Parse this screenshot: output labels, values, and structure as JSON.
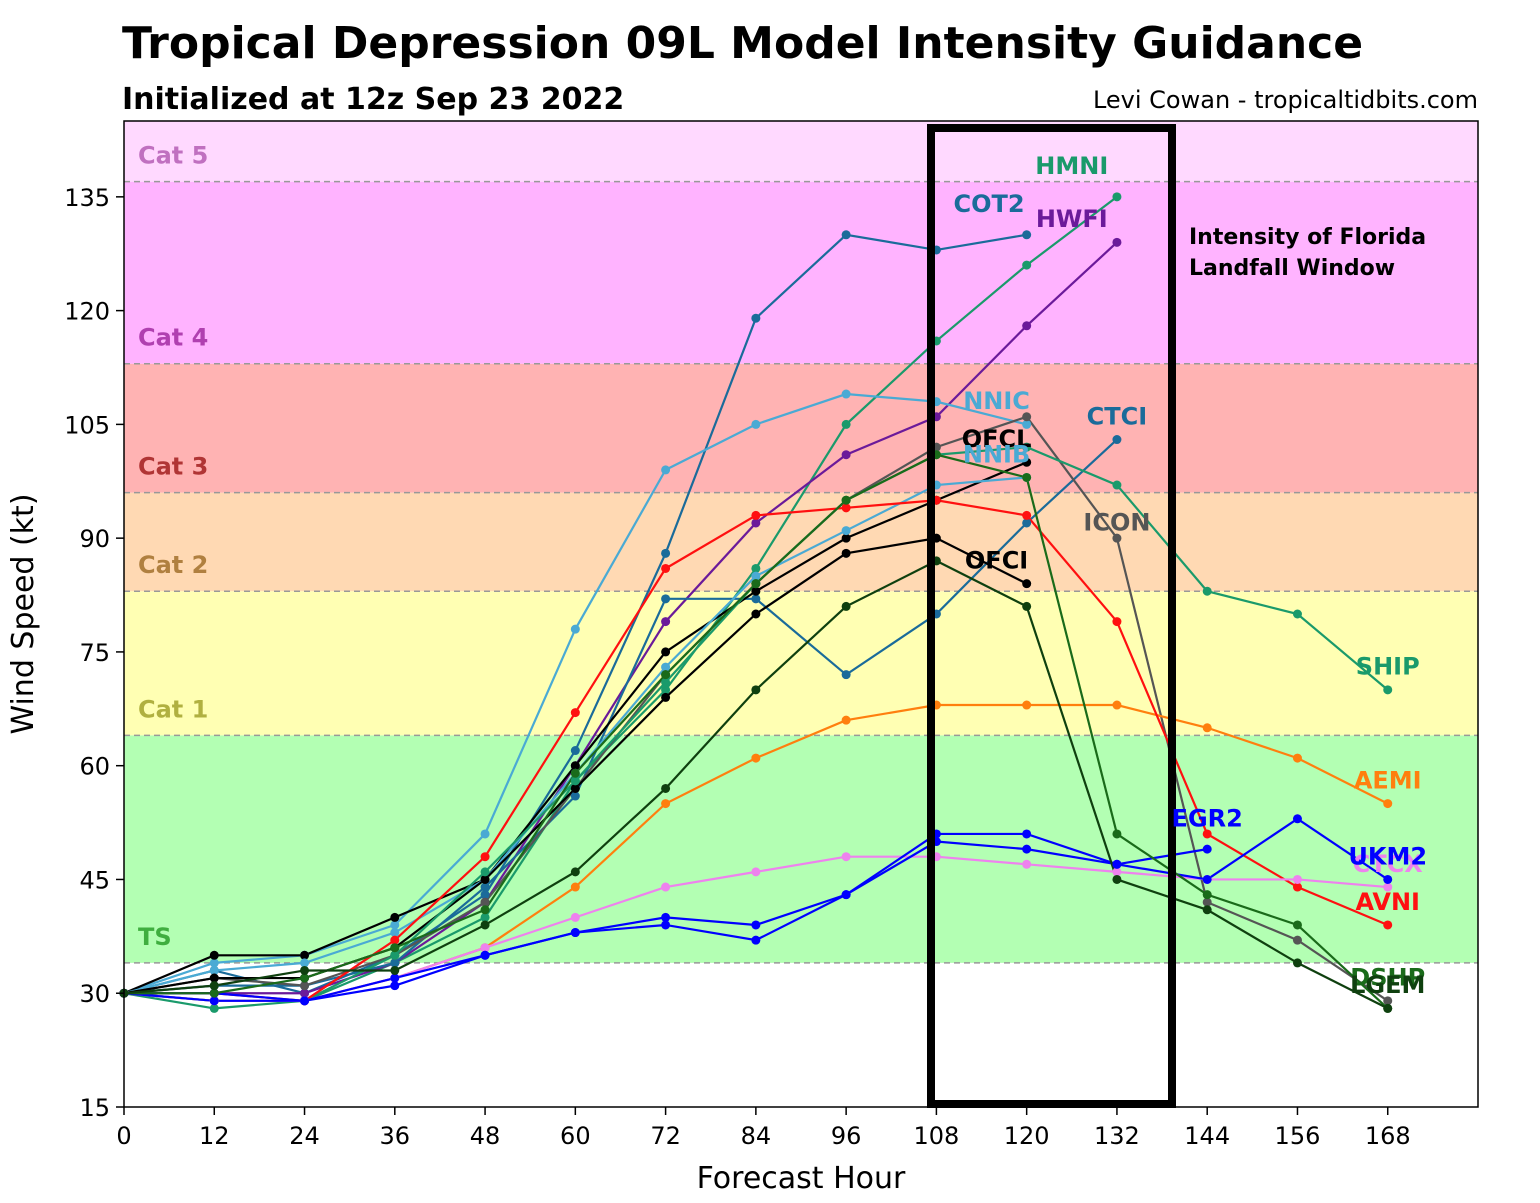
{
  "header": {
    "title": "Tropical Depression 09L Model Intensity Guidance",
    "subtitle": "Initialized at 12z Sep 23 2022",
    "credit": "Levi Cowan - tropicaltidbits.com"
  },
  "chart_data": {
    "type": "line",
    "xlabel": "Forecast Hour",
    "ylabel": "Wind Speed (kt)",
    "xlim": [
      0,
      180
    ],
    "ylim": [
      15,
      145
    ],
    "xticks": [
      0,
      12,
      24,
      36,
      48,
      60,
      72,
      84,
      96,
      108,
      120,
      132,
      144,
      156,
      168
    ],
    "yticks": [
      15,
      30,
      45,
      60,
      75,
      90,
      105,
      120,
      135
    ],
    "categories": [
      {
        "label": "TS",
        "min": 34,
        "max": 64,
        "fill": "#b3ffb3",
        "text_color": "#3fae3f"
      },
      {
        "label": "Cat 1",
        "min": 64,
        "max": 83,
        "fill": "#ffffb3",
        "text_color": "#b0b040"
      },
      {
        "label": "Cat 2",
        "min": 83,
        "max": 96,
        "fill": "#ffd9b3",
        "text_color": "#b08040"
      },
      {
        "label": "Cat 3",
        "min": 96,
        "max": 113,
        "fill": "#ffb3b3",
        "text_color": "#b03535"
      },
      {
        "label": "Cat 4",
        "min": 113,
        "max": 137,
        "fill": "#ffb3ff",
        "text_color": "#b040b0"
      },
      {
        "label": "Cat 5",
        "min": 137,
        "max": 145,
        "fill": "#ffd9ff",
        "text_color": "#c070c0"
      }
    ],
    "annotation": {
      "lines": [
        "Intensity of Florida",
        "Landfall Window"
      ],
      "x_range": [
        108,
        140
      ]
    },
    "series": [
      {
        "name": "COT2",
        "color": "#1a6b9a",
        "x": [
          0,
          12,
          24,
          36,
          48,
          60,
          72,
          84,
          96,
          108,
          120
        ],
        "values": [
          30,
          33,
          30,
          35,
          43,
          62,
          88,
          119,
          130,
          128,
          130
        ],
        "label_at": [
          115,
          133
        ]
      },
      {
        "name": "HMNI",
        "color": "#1a9a6b",
        "x": [
          0,
          12,
          24,
          36,
          48,
          60,
          72,
          84,
          96,
          108,
          120,
          132
        ],
        "values": [
          30,
          28,
          29,
          34,
          40,
          58,
          70,
          86,
          105,
          116,
          126,
          135
        ],
        "label_at": [
          126,
          138
        ]
      },
      {
        "name": "HWFI",
        "color": "#6b1a9a",
        "x": [
          0,
          12,
          24,
          36,
          48,
          60,
          72,
          84,
          96,
          108,
          120,
          132
        ],
        "values": [
          30,
          30,
          30,
          34,
          42,
          60,
          79,
          92,
          101,
          106,
          118,
          129
        ],
        "label_at": [
          126,
          131
        ]
      },
      {
        "name": "NNIC",
        "color": "#4aaad4",
        "x": [
          0,
          12,
          24,
          36,
          48,
          60,
          72,
          84,
          96,
          108,
          120
        ],
        "values": [
          30,
          34,
          35,
          39,
          51,
          78,
          99,
          105,
          109,
          108,
          105
        ],
        "label_at": [
          116,
          107
        ]
      },
      {
        "name": "CTCI",
        "color": "#1a6b9a",
        "x": [
          0,
          12,
          24,
          36,
          48,
          60,
          72,
          84,
          96,
          108,
          120,
          132
        ],
        "values": [
          30,
          31,
          31,
          34,
          44,
          56,
          82,
          82,
          72,
          80,
          92,
          103
        ],
        "label_at": [
          132,
          105
        ]
      },
      {
        "name": "OFCL",
        "color": "#000000",
        "x": [
          0,
          12,
          24,
          36,
          48,
          60,
          72,
          84,
          96,
          108,
          120
        ],
        "values": [
          30,
          35,
          35,
          40,
          45,
          60,
          75,
          83,
          90,
          95,
          100
        ],
        "label_at": [
          116,
          102
        ]
      },
      {
        "name": "NNIB",
        "color": "#4aaad4",
        "x": [
          0,
          12,
          24,
          36,
          48,
          60,
          72,
          84,
          96,
          108,
          120
        ],
        "values": [
          30,
          33,
          34,
          38,
          45,
          59,
          73,
          85,
          91,
          97,
          98
        ],
        "label_at": [
          116,
          100
        ]
      },
      {
        "name": "ICON",
        "color": "#555555",
        "x": [
          0,
          12,
          24,
          36,
          48,
          60,
          72,
          84,
          96,
          108,
          120,
          132,
          144,
          156,
          168
        ],
        "values": [
          30,
          32,
          31,
          35,
          42,
          57,
          72,
          84,
          95,
          102,
          106,
          90,
          42,
          37,
          29
        ],
        "label_at": [
          132,
          91
        ]
      },
      {
        "name": "OFCI",
        "color": "#000000",
        "x": [
          0,
          12,
          24,
          36,
          48,
          60,
          72,
          84,
          96,
          108,
          120
        ],
        "values": [
          30,
          32,
          32,
          36,
          45,
          57,
          69,
          80,
          88,
          90,
          84
        ],
        "label_at": [
          116,
          86
        ]
      },
      {
        "name": "SHIP",
        "color": "#1a9a6b",
        "x": [
          0,
          12,
          24,
          36,
          48,
          60,
          72,
          84,
          96,
          108,
          120,
          132,
          144,
          156,
          168
        ],
        "values": [
          30,
          29,
          29,
          35,
          46,
          58,
          71,
          84,
          95,
          101,
          102,
          97,
          83,
          80,
          70
        ],
        "label_at": [
          168,
          72
        ]
      },
      {
        "name": "AEMI",
        "color": "#ff7f0e",
        "x": [
          0,
          12,
          24,
          36,
          48,
          60,
          72,
          84,
          96,
          108,
          120,
          132,
          144,
          156,
          168
        ],
        "values": [
          30,
          29,
          29,
          32,
          36,
          44,
          55,
          61,
          66,
          68,
          68,
          68,
          65,
          61,
          55
        ],
        "label_at": [
          168,
          57
        ]
      },
      {
        "name": "AVNI",
        "color": "#ff1010",
        "x": [
          0,
          12,
          24,
          36,
          48,
          60,
          72,
          84,
          96,
          108,
          120,
          132,
          144,
          156,
          168
        ],
        "values": [
          30,
          30,
          29,
          37,
          48,
          67,
          86,
          93,
          94,
          95,
          93,
          79,
          51,
          44,
          39
        ],
        "label_at": [
          168,
          41
        ]
      },
      {
        "name": "CTCX",
        "color": "#ee82ee",
        "x": [
          0,
          12,
          24,
          36,
          48,
          60,
          72,
          84,
          96,
          108,
          120,
          132,
          144,
          156,
          168
        ],
        "values": [
          30,
          29,
          29,
          32,
          36,
          40,
          44,
          46,
          48,
          48,
          47,
          46,
          45,
          45,
          44
        ],
        "label_at": [
          168,
          46
        ]
      },
      {
        "name": "UKM2",
        "color": "#0000ff",
        "x": [
          0,
          12,
          24,
          36,
          48,
          60,
          72,
          84,
          96,
          108,
          120,
          132,
          144,
          156,
          168
        ],
        "values": [
          30,
          29,
          29,
          31,
          35,
          38,
          39,
          37,
          43,
          51,
          51,
          47,
          45,
          53,
          45
        ],
        "label_at": [
          168,
          47
        ]
      },
      {
        "name": "EGR2",
        "color": "#0000ff",
        "x": [
          0,
          12,
          24,
          36,
          48,
          60,
          72,
          84,
          96,
          108,
          120,
          132,
          144
        ],
        "values": [
          30,
          30,
          29,
          32,
          35,
          38,
          40,
          39,
          43,
          50,
          49,
          47,
          49
        ],
        "label_at": [
          144,
          52
        ]
      },
      {
        "name": "DSHP",
        "color": "#1a6b1a",
        "x": [
          0,
          12,
          24,
          36,
          48,
          60,
          72,
          84,
          96,
          108,
          120,
          132,
          144,
          156,
          168
        ],
        "values": [
          30,
          30,
          32,
          36,
          41,
          59,
          72,
          84,
          95,
          101,
          98,
          51,
          43,
          39,
          28
        ],
        "label_at": [
          168,
          31
        ]
      },
      {
        "name": "LGEM",
        "color": "#0f400f",
        "x": [
          0,
          12,
          24,
          36,
          48,
          60,
          72,
          84,
          96,
          108,
          120,
          132,
          144,
          156,
          168
        ],
        "values": [
          30,
          31,
          33,
          33,
          39,
          46,
          57,
          70,
          81,
          87,
          81,
          45,
          41,
          34,
          28
        ],
        "label_at": [
          168,
          30
        ]
      }
    ]
  }
}
